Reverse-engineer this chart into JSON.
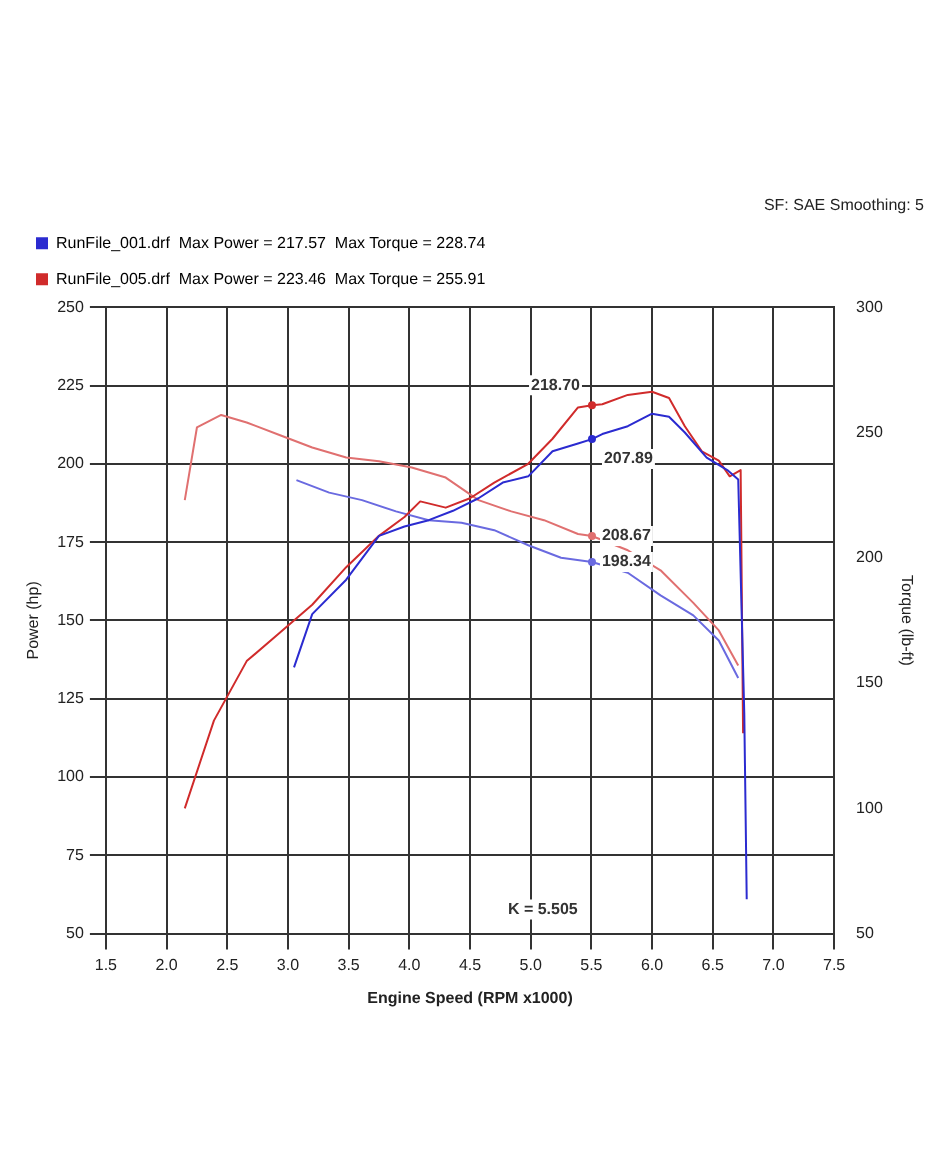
{
  "chart_data": {
    "type": "line",
    "subtitle": "SF: SAE Smoothing: 5",
    "xlabel": "Engine Speed (RPM x1000)",
    "ylabel": "Power (hp)",
    "y2label": "Torque (lb-ft)",
    "xlim": [
      1.5,
      7.5
    ],
    "xticks": [
      {
        "value": 1.5,
        "label": "1.5"
      },
      {
        "value": 2,
        "label": "2.0"
      },
      {
        "value": 2.5,
        "label": "2.5"
      },
      {
        "value": 3,
        "label": "3.0"
      },
      {
        "value": 3.5,
        "label": "3.5"
      },
      {
        "value": 4,
        "label": "4.0"
      },
      {
        "value": 4.5,
        "label": "4.5"
      },
      {
        "value": 5,
        "label": "5.0"
      },
      {
        "value": 5.5,
        "label": "5.5"
      },
      {
        "value": 6,
        "label": "6.0"
      },
      {
        "value": 6.5,
        "label": "6.5"
      },
      {
        "value": 7,
        "label": "7.0"
      },
      {
        "value": 7.5,
        "label": "7.5"
      }
    ],
    "ylim": [
      50,
      250
    ],
    "yticks": [
      50,
      75,
      100,
      125,
      150,
      175,
      200,
      225,
      250
    ],
    "y2lim": [
      50,
      300
    ],
    "y2ticks": [
      50,
      100,
      150,
      200,
      250,
      300
    ],
    "grid": true,
    "legend": "top left",
    "marker": "none",
    "line_style": "solid",
    "series": [
      {
        "name": "RunFile_001.drf  Max Power = 217.57  Max Torque = 228.74",
        "color": "#2b2bd0",
        "x": [
          3.05,
          3.2,
          3.48,
          3.75,
          3.96,
          4.16,
          4.36,
          4.57,
          4.77,
          4.98,
          5.18,
          5.39,
          5.505,
          5.59,
          5.8,
          6.0,
          6.14,
          6.27,
          6.45,
          6.62,
          6.71,
          6.76,
          6.78
        ],
        "values": [
          135,
          152,
          163,
          177,
          180,
          182,
          185,
          189,
          194,
          196,
          204,
          206.5,
          207.89,
          209.5,
          212,
          216,
          215,
          210,
          202,
          198,
          195,
          120,
          61
        ],
        "value_labels": [
          null,
          null,
          null,
          null,
          null,
          null,
          null,
          null,
          null,
          null,
          null,
          null,
          "207.89",
          null,
          null,
          null,
          null,
          null,
          null,
          null,
          null,
          null,
          null
        ]
      },
      {
        "name": "RunFile_005.drf  Max Power = 223.46  Max Torque = 255.91",
        "color": "#d02b2b",
        "x": [
          2.15,
          2.39,
          2.66,
          2.93,
          3.2,
          3.48,
          3.75,
          3.96,
          4.09,
          4.3,
          4.5,
          4.7,
          4.98,
          5.18,
          5.39,
          5.505,
          5.59,
          5.8,
          6.0,
          6.14,
          6.27,
          6.41,
          6.55,
          6.64,
          6.73,
          6.75
        ],
        "values": [
          90,
          118,
          137,
          146,
          155,
          167,
          177,
          183,
          188,
          186,
          189,
          194,
          200,
          208,
          218,
          218.7,
          219,
          222,
          223,
          221,
          212,
          204,
          201,
          196,
          198,
          114
        ],
        "value_labels": [
          null,
          null,
          null,
          null,
          null,
          null,
          null,
          null,
          null,
          null,
          null,
          null,
          null,
          null,
          null,
          "218.70",
          null,
          null,
          null,
          null,
          null,
          null,
          null,
          null,
          null,
          null
        ]
      },
      {
        "color": "#6a6ae0",
        "axis": "y2",
        "x": [
          3.07,
          3.34,
          3.61,
          3.89,
          4.16,
          4.43,
          4.7,
          4.98,
          5.25,
          5.505,
          5.8,
          6.07,
          6.34,
          6.55,
          6.71
        ],
        "values": [
          231,
          226,
          223,
          218.5,
          215,
          214,
          211,
          205,
          200,
          198.34,
          194,
          185,
          177,
          167,
          152
        ],
        "value_labels": [
          null,
          null,
          null,
          null,
          null,
          null,
          null,
          null,
          null,
          "198.34",
          null,
          null,
          null,
          null,
          null
        ]
      },
      {
        "color": "#e07070",
        "axis": "y2",
        "x": [
          2.15,
          2.25,
          2.45,
          2.66,
          2.93,
          3.2,
          3.48,
          3.75,
          4.02,
          4.3,
          4.57,
          4.84,
          5.11,
          5.39,
          5.505,
          5.8,
          6.07,
          6.34,
          6.55,
          6.71
        ],
        "values": [
          223,
          252,
          257,
          254,
          249,
          244,
          240,
          238.5,
          236,
          232,
          223,
          218.5,
          215,
          209.5,
          208.67,
          203,
          195,
          182,
          171,
          157
        ],
        "value_labels": [
          null,
          null,
          null,
          null,
          null,
          null,
          null,
          null,
          null,
          null,
          null,
          null,
          null,
          null,
          "208.67",
          null,
          null,
          null,
          null,
          null
        ]
      }
    ],
    "annotations": [
      "K = 5.505"
    ]
  }
}
